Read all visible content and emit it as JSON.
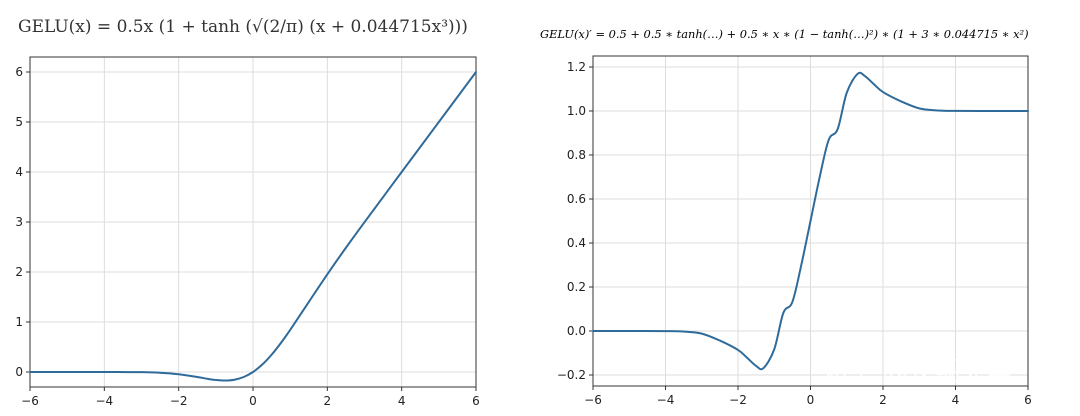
{
  "formulas": {
    "left": "GELU(x) = 0.5x (1 + tanh (√(2/π) (x + 0.044715x³)))",
    "right": "GELU(x)′ =  0.5 + 0.5 ∗ tanh(…) + 0.5 ∗ x ∗ (1 − tanh(…)²) ∗ (1 + 3 ∗ 0.044715 ∗ x²)"
  },
  "watermark": "知乎 @龙翔天翼",
  "colors": {
    "line": "#2f6b9a",
    "grid": "#dddddd",
    "axes": "#333333"
  },
  "chart_data": [
    {
      "type": "line",
      "title": "",
      "function": "GELU(x)",
      "xlabel": "",
      "ylabel": "",
      "xlim": [
        -6,
        6
      ],
      "ylim": [
        -0.3,
        6.3
      ],
      "grid": true,
      "xticks": [
        -6,
        -4,
        -2,
        0,
        2,
        4,
        6
      ],
      "xtick_labels": [
        "−6",
        "−4",
        "−2",
        "0",
        "2",
        "4",
        "6"
      ],
      "yticks": [
        0,
        1,
        2,
        3,
        4,
        5,
        6
      ],
      "ytick_labels": [
        "0",
        "1",
        "2",
        "3",
        "4",
        "5",
        "6"
      ],
      "series": [
        {
          "x": [
            -6,
            -5,
            -4,
            -3,
            -2.5,
            -2,
            -1.5,
            -1.2,
            -1,
            -0.75,
            -0.5,
            -0.25,
            0,
            0.25,
            0.5,
            0.75,
            1,
            1.5,
            2,
            2.5,
            3,
            4,
            5,
            6
          ],
          "y": [
            0,
            0,
            -0.0001,
            -0.0036,
            -0.0148,
            -0.0454,
            -0.1004,
            -0.1391,
            -0.1588,
            -0.17,
            -0.1543,
            -0.1003,
            0,
            0.1497,
            0.3457,
            0.58,
            0.8412,
            1.3996,
            1.9546,
            2.4852,
            2.9964,
            3.9999,
            5,
            6
          ]
        }
      ]
    },
    {
      "type": "line",
      "title": "",
      "function": "GELU(x)′",
      "xlabel": "",
      "ylabel": "",
      "xlim": [
        -6,
        6
      ],
      "ylim": [
        -0.25,
        1.25
      ],
      "grid": true,
      "xticks": [
        -6,
        -4,
        -2,
        0,
        2,
        4,
        6
      ],
      "xtick_labels": [
        "−6",
        "−4",
        "−2",
        "0",
        "2",
        "4",
        "6"
      ],
      "yticks": [
        -0.2,
        0,
        0.2,
        0.4,
        0.6,
        0.8,
        1.0,
        1.2
      ],
      "ytick_labels": [
        "−0.2",
        "0.0",
        "0.2",
        "0.4",
        "0.6",
        "0.8",
        "1.0",
        "1.2"
      ],
      "series": [
        {
          "x": [
            -6,
            -5,
            -4,
            -3.5,
            -3,
            -2.5,
            -2,
            -1.75,
            -1.5,
            -1.3,
            -1,
            -0.75,
            -0.5,
            -0.25,
            0,
            0.25,
            0.5,
            0.75,
            1,
            1.3,
            1.5,
            1.75,
            2,
            2.5,
            3,
            3.5,
            4,
            5,
            6
          ],
          "y": [
            0,
            0,
            -0.0005,
            -0.0025,
            -0.0118,
            -0.0436,
            -0.0861,
            -0.1215,
            -0.1587,
            -0.169,
            -0.083,
            0.082,
            0.132,
            0.303,
            0.5,
            0.697,
            0.868,
            0.918,
            1.083,
            1.169,
            1.1587,
            1.1215,
            1.0861,
            1.0436,
            1.0118,
            1.0025,
            1.0005,
            1,
            1
          ]
        }
      ]
    }
  ]
}
